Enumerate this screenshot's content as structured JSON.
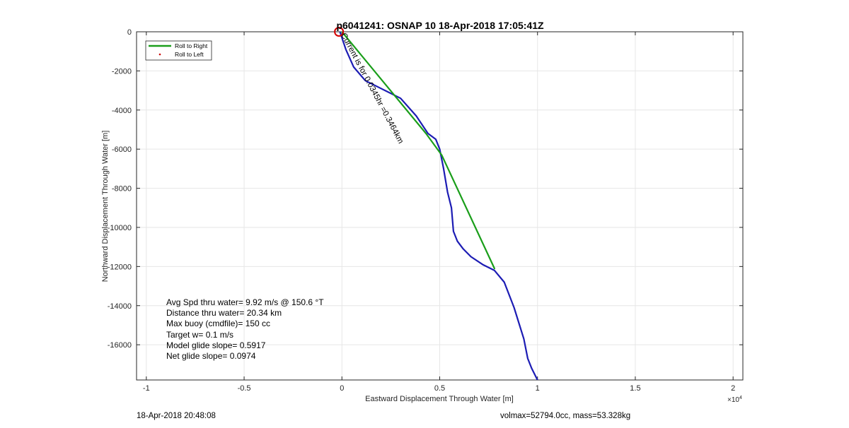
{
  "chart_data": {
    "type": "line",
    "title": "p6041241: OSNAP 10 18-Apr-2018 17:05:41Z",
    "xlabel": "Eastward Displacement Through Water [m]",
    "ylabel": "Northward Displacement Through Water [m]",
    "x_exponent_label": "×10",
    "x_exponent_power": "4",
    "xlim": [
      -10500,
      20500
    ],
    "ylim": [
      -17800,
      0
    ],
    "x_ticks": [
      -10000,
      -5000,
      0,
      5000,
      10000,
      15000,
      20000
    ],
    "x_tick_labels": [
      "-1",
      "-0.5",
      "0",
      "0.5",
      "1",
      "1.5",
      "2"
    ],
    "y_ticks": [
      0,
      -2000,
      -4000,
      -6000,
      -8000,
      -10000,
      -12000,
      -14000,
      -16000
    ],
    "y_tick_labels": [
      "0",
      "-2000",
      "-4000",
      "-6000",
      "-8000",
      "-10000",
      "-12000",
      "-14000",
      "-16000"
    ],
    "grid": true,
    "legend_position": "top-left",
    "series": [
      {
        "name": "Roll to Right",
        "color": "#1a9e1a",
        "x": [
          0,
          4300,
          5100,
          7800
        ],
        "y": [
          0,
          -5200,
          -6300,
          -12100
        ]
      },
      {
        "name": "Roll to Left",
        "color": "#cc0000",
        "marker": "dot",
        "x": [],
        "y": []
      },
      {
        "name": "",
        "color": "#1c1cb4",
        "x": [
          -100,
          200,
          600,
          1200,
          2000,
          3000,
          3800,
          4400,
          4800,
          5000,
          5200,
          5400,
          5600,
          5700,
          5900,
          6200,
          6600,
          7200,
          7800,
          8300,
          8800,
          9300,
          9500,
          9700,
          10000
        ],
        "y": [
          0,
          -900,
          -1800,
          -2500,
          -2900,
          -3400,
          -4300,
          -5200,
          -5500,
          -6000,
          -7000,
          -8200,
          -9000,
          -10200,
          -10700,
          -11100,
          -11500,
          -11900,
          -12200,
          -12800,
          -14100,
          -15700,
          -16700,
          -17200,
          -17800
        ]
      }
    ],
    "annotations": [
      {
        "text": "Current is for 0.0345hr =0.3464km",
        "x": -50,
        "y": -150,
        "rotation": 62
      }
    ],
    "start_marker": {
      "x": -150,
      "y": 0,
      "color": "#d40000"
    }
  },
  "stats": {
    "lines": [
      "Avg Spd thru water=  9.92 m/s @ 150.6 °T",
      "Distance thru water= 20.34 km",
      "Max buoy (cmdfile)= 150 cc",
      "Target w= 0.1 m/s",
      "Model glide slope= 0.5917",
      "Net glide slope= 0.0974"
    ]
  },
  "footer": {
    "left": "18-Apr-2018 20:48:08",
    "right": "volmax=52794.0cc, mass=53.328kg"
  }
}
